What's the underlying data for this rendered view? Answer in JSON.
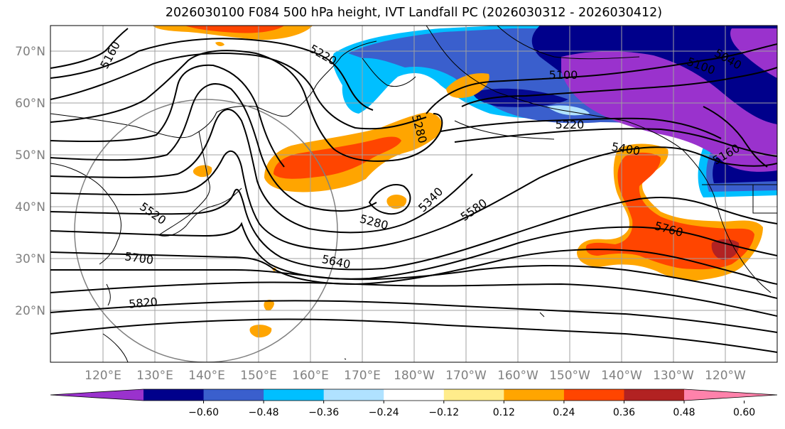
{
  "title": "2026030100 F084 500 hPa height, IVT Landfall PC (2026030312 - 2026030412)",
  "lat_labels": [
    "70°N",
    "60°N",
    "50°N",
    "40°N",
    "30°N",
    "20°N"
  ],
  "lon_labels": [
    "120°E",
    "130°E",
    "140°E",
    "150°E",
    "160°E",
    "170°E",
    "180°W",
    "170°W",
    "160°W",
    "150°W",
    "140°W",
    "130°W",
    "120°W"
  ],
  "colorbar": {
    "colors": [
      "#9a32cd",
      "#00008b",
      "#3a5fcd",
      "#00bfff",
      "#b0e2ff",
      "#ffffff",
      "#ffec8b",
      "#ffa500",
      "#ff4500",
      "#b22222",
      "#ff82ab"
    ],
    "tick_labels": [
      "−0.60",
      "−0.48",
      "−0.36",
      "−0.24",
      "−0.12",
      "0.12",
      "0.24",
      "0.36",
      "0.48",
      "0.60"
    ]
  },
  "contour_labels": [
    "5160",
    "5220",
    "5100",
    "5040",
    "5100",
    "5280",
    "5220",
    "5400",
    "5160",
    "5520",
    "5280",
    "5340",
    "5580",
    "5760",
    "5700",
    "5640",
    "5820"
  ]
}
